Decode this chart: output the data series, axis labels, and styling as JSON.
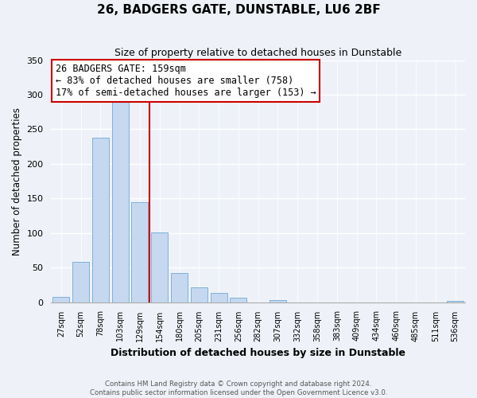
{
  "title": "26, BADGERS GATE, DUNSTABLE, LU6 2BF",
  "subtitle": "Size of property relative to detached houses in Dunstable",
  "xlabel": "Distribution of detached houses by size in Dunstable",
  "ylabel": "Number of detached properties",
  "bar_labels": [
    "27sqm",
    "52sqm",
    "78sqm",
    "103sqm",
    "129sqm",
    "154sqm",
    "180sqm",
    "205sqm",
    "231sqm",
    "256sqm",
    "282sqm",
    "307sqm",
    "332sqm",
    "358sqm",
    "383sqm",
    "409sqm",
    "434sqm",
    "460sqm",
    "485sqm",
    "511sqm",
    "536sqm"
  ],
  "bar_values": [
    8,
    58,
    238,
    290,
    145,
    101,
    42,
    21,
    13,
    6,
    0,
    3,
    0,
    0,
    0,
    0,
    0,
    0,
    0,
    0,
    2
  ],
  "bar_color": "#c5d8f0",
  "bar_edge_color": "#6fa8d4",
  "vline_x_idx": 5,
  "vline_color": "#cc0000",
  "annotation_title": "26 BADGERS GATE: 159sqm",
  "annotation_line1": "← 83% of detached houses are smaller (758)",
  "annotation_line2": "17% of semi-detached houses are larger (153) →",
  "annotation_box_color": "#ffffff",
  "annotation_box_edge": "#cc0000",
  "ylim": [
    0,
    350
  ],
  "yticks": [
    0,
    50,
    100,
    150,
    200,
    250,
    300,
    350
  ],
  "footer1": "Contains HM Land Registry data © Crown copyright and database right 2024.",
  "footer2": "Contains public sector information licensed under the Open Government Licence v3.0.",
  "bg_color": "#eef2f8"
}
